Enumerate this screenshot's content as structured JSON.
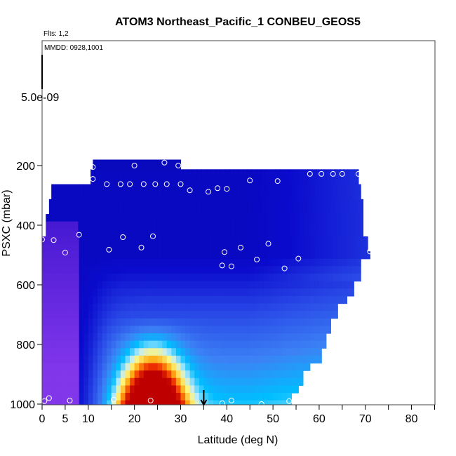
{
  "chart_data": {
    "type": "heatmap",
    "title": "ATOM3 Northeast_Pacific_1 CONBEU_GEOS5",
    "flights_label": "Flts: 1,2",
    "mmdd_label": "MMDD: 0928,1001",
    "scale_label": "5.0e-09",
    "xlabel": "Latitude (deg N)",
    "ylabel": "PSXC (mbar)",
    "xlim": [
      0,
      85
    ],
    "ylim": [
      1000,
      0
    ],
    "x_ticks": [
      0,
      5,
      10,
      20,
      30,
      40,
      50,
      60,
      70,
      80
    ],
    "y_ticks": [
      200,
      400,
      600,
      800,
      1000
    ],
    "arrow_latitude": 35,
    "colors": {
      "dark_blue": "#0a0ac8",
      "mid_blue": "#3355ee",
      "light_blue": "#33aaff",
      "cyan": "#00c0ff",
      "purple": "#7a2ee8",
      "red": "#dd0000",
      "orange": "#ff8800",
      "yellow": "#ffee55"
    },
    "observation_points": [
      {
        "lat": 2.5,
        "p": 218
      },
      {
        "lat": 4,
        "p": 240
      },
      {
        "lat": 6,
        "p": 240
      },
      {
        "lat": 9,
        "p": 240
      },
      {
        "lat": 11,
        "p": 245
      },
      {
        "lat": 11,
        "p": 205
      },
      {
        "lat": 14,
        "p": 262
      },
      {
        "lat": 17,
        "p": 262
      },
      {
        "lat": 19,
        "p": 262
      },
      {
        "lat": 20,
        "p": 200
      },
      {
        "lat": 22,
        "p": 262
      },
      {
        "lat": 24.5,
        "p": 262
      },
      {
        "lat": 26.5,
        "p": 190
      },
      {
        "lat": 27,
        "p": 262
      },
      {
        "lat": 29.5,
        "p": 200
      },
      {
        "lat": 30,
        "p": 262
      },
      {
        "lat": 32,
        "p": 283
      },
      {
        "lat": 36,
        "p": 288
      },
      {
        "lat": 38,
        "p": 276
      },
      {
        "lat": 40,
        "p": 278
      },
      {
        "lat": 45,
        "p": 250
      },
      {
        "lat": 51,
        "p": 252
      },
      {
        "lat": 58,
        "p": 228
      },
      {
        "lat": 60.5,
        "p": 228
      },
      {
        "lat": 63,
        "p": 228
      },
      {
        "lat": 65,
        "p": 228
      },
      {
        "lat": 68.5,
        "p": 228
      },
      {
        "lat": 0,
        "p": 448
      },
      {
        "lat": 2.5,
        "p": 450
      },
      {
        "lat": 5,
        "p": 492
      },
      {
        "lat": 8,
        "p": 432
      },
      {
        "lat": 14.5,
        "p": 482
      },
      {
        "lat": 17.5,
        "p": 440
      },
      {
        "lat": 21.5,
        "p": 475
      },
      {
        "lat": 24,
        "p": 437
      },
      {
        "lat": 39,
        "p": 535
      },
      {
        "lat": 39.5,
        "p": 490
      },
      {
        "lat": 41,
        "p": 538
      },
      {
        "lat": 43,
        "p": 475
      },
      {
        "lat": 46.5,
        "p": 515
      },
      {
        "lat": 49,
        "p": 462
      },
      {
        "lat": 52.5,
        "p": 545
      },
      {
        "lat": 55.5,
        "p": 512
      },
      {
        "lat": 71,
        "p": 488
      },
      {
        "lat": 0.5,
        "p": 990
      },
      {
        "lat": 1.5,
        "p": 980
      },
      {
        "lat": 6,
        "p": 988
      },
      {
        "lat": 15.5,
        "p": 985
      },
      {
        "lat": 23.5,
        "p": 988
      },
      {
        "lat": 39,
        "p": 997
      },
      {
        "lat": 41,
        "p": 988
      },
      {
        "lat": 47.5,
        "p": 1000
      },
      {
        "lat": 53.5,
        "p": 990
      }
    ]
  }
}
